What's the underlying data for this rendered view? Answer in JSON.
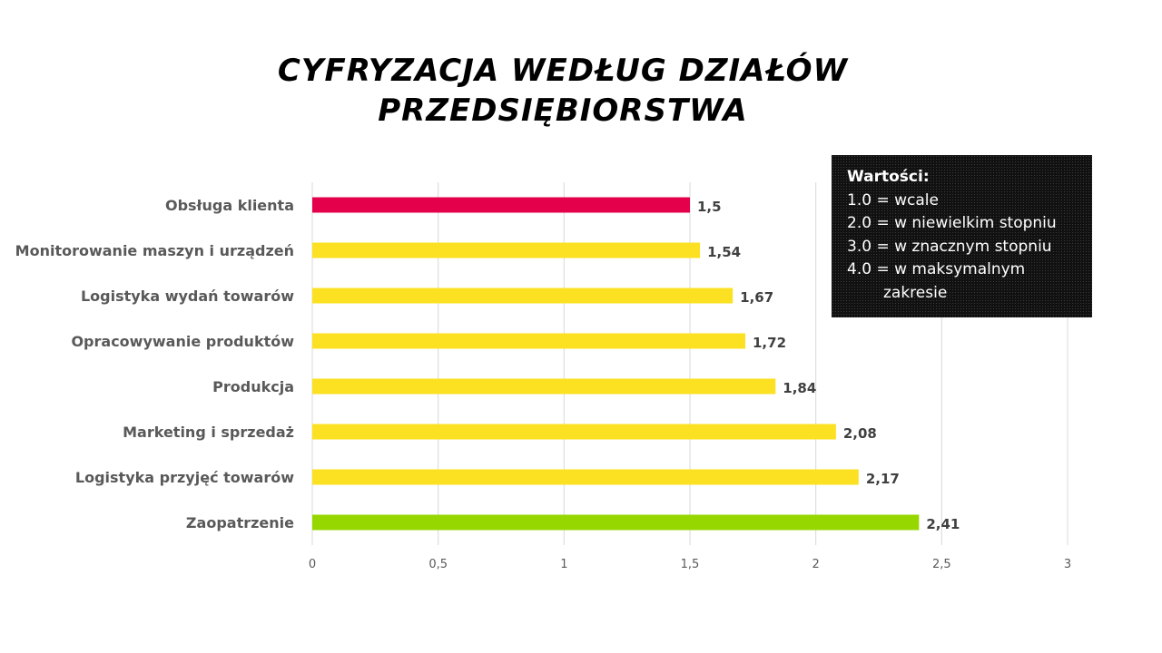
{
  "title": {
    "line1": "CYFRYZACJA WEDŁUG DZIAŁÓW",
    "line2": "PRZEDSIĘBIORSTWA"
  },
  "legend": {
    "heading": "Wartości:",
    "items": [
      "1.0 = wcale",
      "2.0 = w niewielkim stopniu",
      "3.0 = w znacznym stopniu",
      "4.0 = w maksymalnym"
    ],
    "continuation": "zakresie"
  },
  "colors": {
    "highlight_low": "#e4004b",
    "default": "#fbe122",
    "highlight_high": "#97d700",
    "grid": "#d9d9d9",
    "category_text": "#595959",
    "value_text": "#404040"
  },
  "chart_data": {
    "type": "bar",
    "orientation": "horizontal",
    "title": "CYFRYZACJA WEDŁUG DZIAŁÓW PRZEDSIĘBIORSTWA",
    "categories": [
      "Obsługa klienta",
      "Monitorowanie maszyn i urządzeń",
      "Logistyka wydań towarów",
      "Opracowywanie produktów",
      "Produkcja",
      "Marketing i sprzedaż",
      "Logistyka przyjęć towarów",
      "Zaopatrzenie"
    ],
    "values": [
      1.5,
      1.54,
      1.67,
      1.72,
      1.84,
      2.08,
      2.17,
      2.41
    ],
    "value_labels": [
      "1,5",
      "1,54",
      "1,67",
      "1,72",
      "1,84",
      "2,08",
      "2,17",
      "2,41"
    ],
    "bar_colors": [
      "#e4004b",
      "#fbe122",
      "#fbe122",
      "#fbe122",
      "#fbe122",
      "#fbe122",
      "#fbe122",
      "#97d700"
    ],
    "xlim": [
      0,
      3
    ],
    "xticks": [
      0,
      0.5,
      1,
      1.5,
      2,
      2.5,
      3
    ],
    "xtick_labels": [
      "0",
      "0,5",
      "1",
      "1,5",
      "2",
      "2,5",
      "3"
    ],
    "grid": true,
    "xlabel": "",
    "ylabel": ""
  }
}
